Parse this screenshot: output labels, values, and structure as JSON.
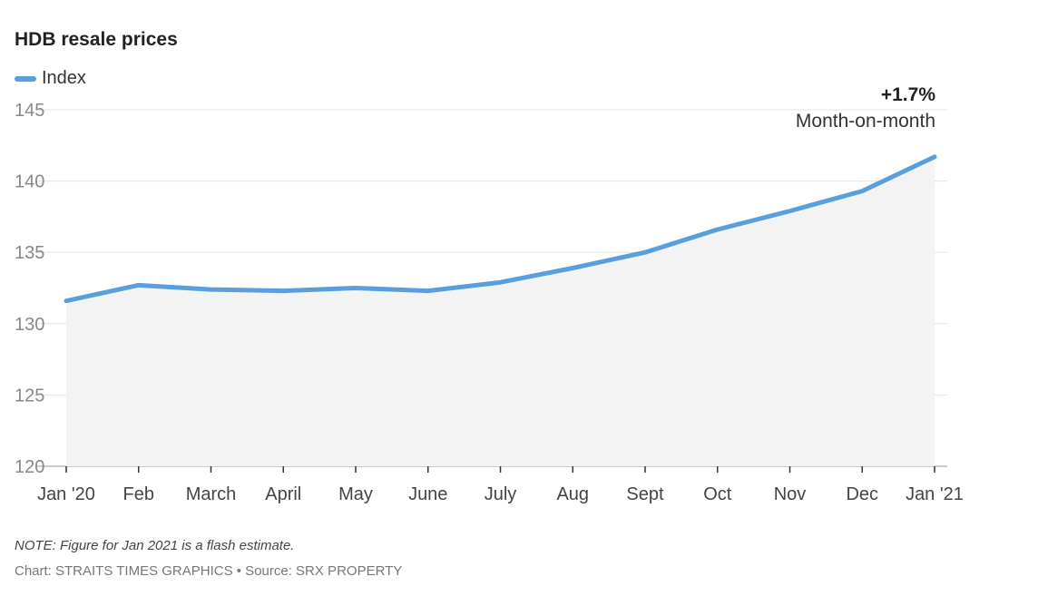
{
  "chart_data": {
    "type": "area",
    "title": "HDB resale prices",
    "legend": [
      "Index"
    ],
    "legend_placement": "top-left",
    "categories": [
      "Jan '20",
      "Feb",
      "March",
      "April",
      "May",
      "June",
      "July",
      "Aug",
      "Sept",
      "Oct",
      "Nov",
      "Dec",
      "Jan '21"
    ],
    "series": [
      {
        "name": "Index",
        "values": [
          131.6,
          132.7,
          132.4,
          132.3,
          132.5,
          132.3,
          132.9,
          133.9,
          135.0,
          136.6,
          137.9,
          139.3,
          141.7
        ]
      }
    ],
    "yticks": [
      120,
      125,
      130,
      135,
      140,
      145
    ],
    "ylim": [
      120,
      145
    ],
    "grid": true,
    "annotation": {
      "value": "+1.7%",
      "label": "Month-on-month"
    },
    "color": "#5a9fdd"
  },
  "note": "NOTE: Figure for Jan 2021 is a flash estimate.",
  "credit": "Chart: STRAITS TIMES GRAPHICS • Source: SRX PROPERTY"
}
